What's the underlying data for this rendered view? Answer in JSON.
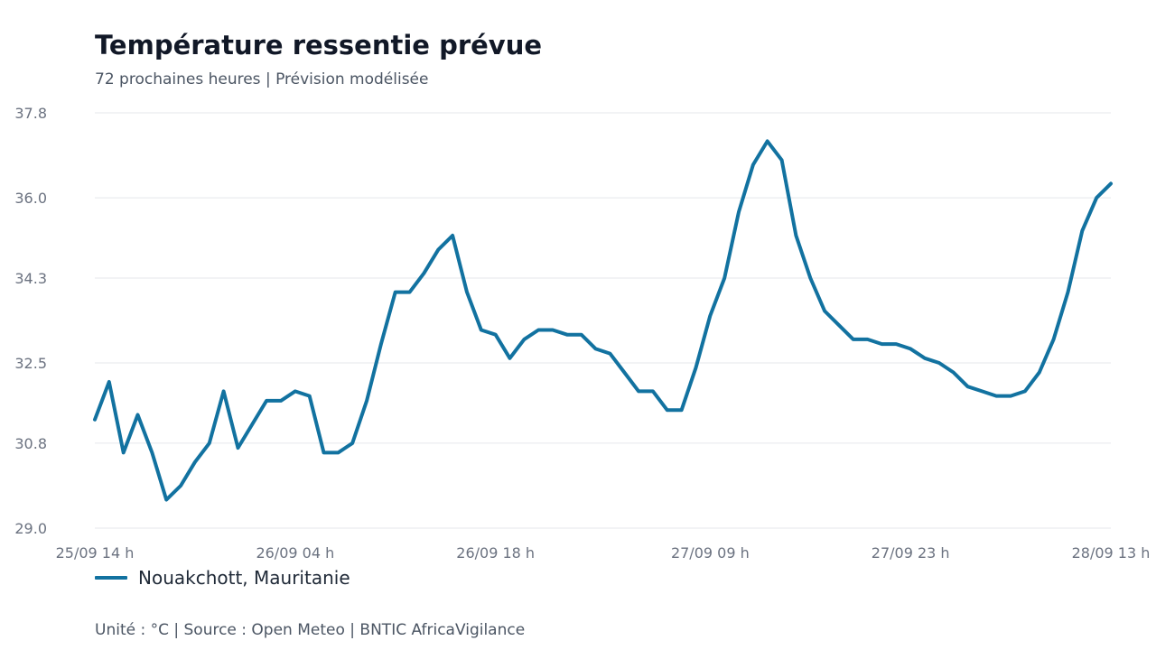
{
  "title": "Température ressentie prévue",
  "subtitle": "72 prochaines heures | Prévision modélisée",
  "footer": "Unité : °C | Source : Open Meteo | BNTIC AfricaVigilance",
  "chart_data": {
    "type": "line",
    "title": "Température ressentie prévue",
    "subtitle": "72 prochaines heures | Prévision modélisée",
    "unit": "°C",
    "ylim": [
      29.0,
      37.8
    ],
    "y_ticks": [
      "29.0",
      "30.8",
      "32.5",
      "34.3",
      "36.0",
      "37.8"
    ],
    "x_tick_labels": [
      "25/09 14 h",
      "26/09 04 h",
      "26/09 18 h",
      "27/09 09 h",
      "27/09 23 h",
      "28/09 13 h"
    ],
    "x_tick_indices": [
      0,
      14,
      28,
      43,
      57,
      71
    ],
    "grid": true,
    "legend_position": "bottom-left",
    "colors": {
      "line": "#1272a0"
    },
    "series": [
      {
        "name": "Nouakchott, Mauritanie",
        "values": [
          31.3,
          32.1,
          30.6,
          31.4,
          30.6,
          29.6,
          29.9,
          30.4,
          30.8,
          31.9,
          30.7,
          31.2,
          31.7,
          31.7,
          31.9,
          31.8,
          30.6,
          30.6,
          30.8,
          31.7,
          32.9,
          34.0,
          34.0,
          34.4,
          34.9,
          35.2,
          34.0,
          33.2,
          33.1,
          32.6,
          33.0,
          33.2,
          33.2,
          33.1,
          33.1,
          32.8,
          32.7,
          32.3,
          31.9,
          31.9,
          31.5,
          31.5,
          32.4,
          33.5,
          34.3,
          35.7,
          36.7,
          37.2,
          36.8,
          35.2,
          34.3,
          33.6,
          33.3,
          33.0,
          33.0,
          32.9,
          32.9,
          32.8,
          32.6,
          32.5,
          32.3,
          32.0,
          31.9,
          31.8,
          31.8,
          31.9,
          32.3,
          33.0,
          34.0,
          35.3,
          36.0,
          36.3
        ]
      }
    ]
  }
}
